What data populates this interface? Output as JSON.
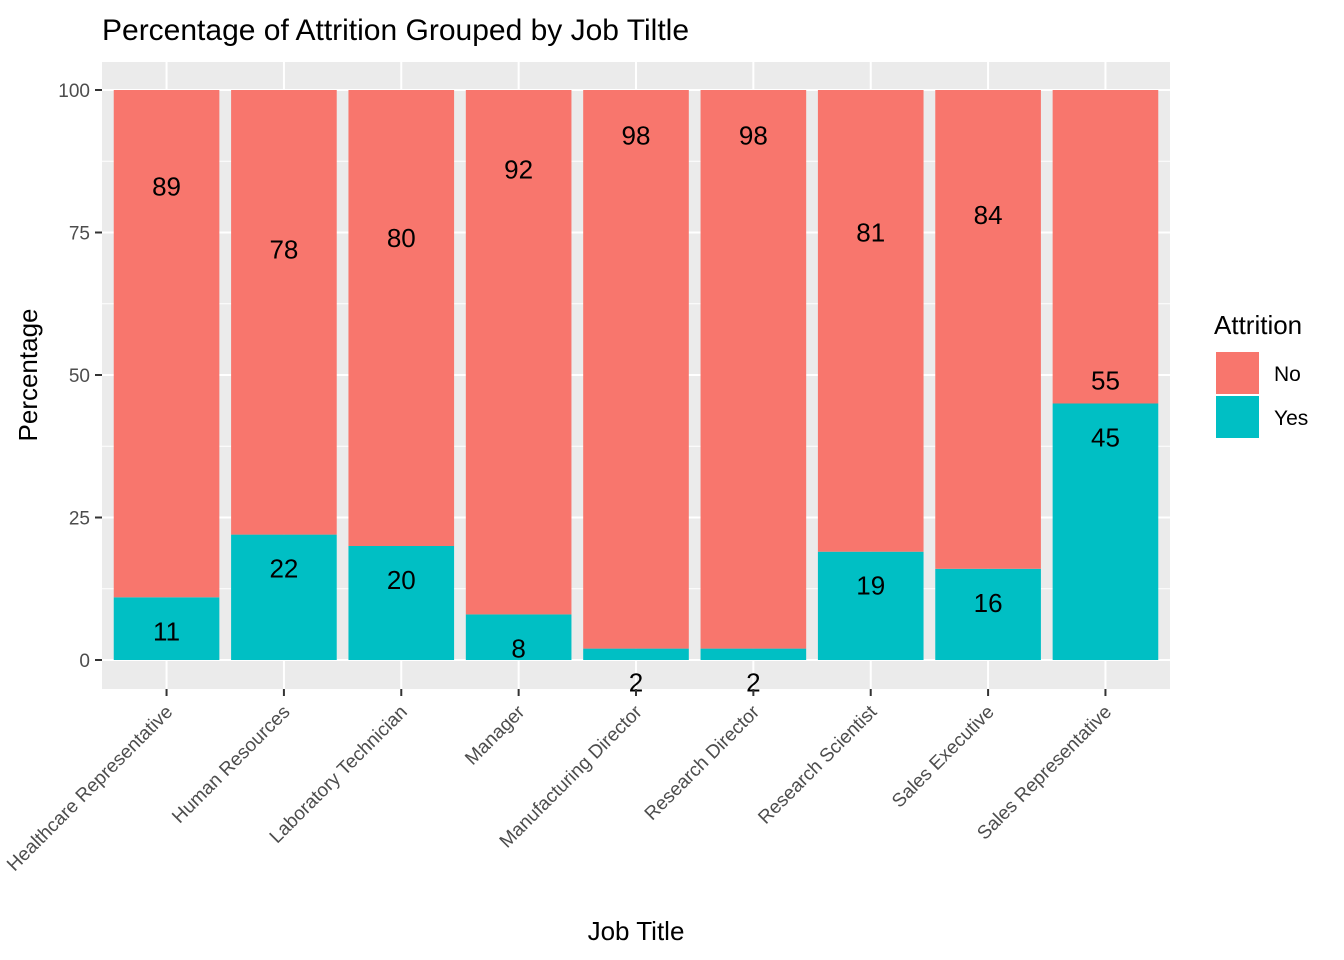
{
  "chart_data": {
    "type": "bar",
    "stacked": true,
    "title": "Percentage of Attrition Grouped by Job Tiltle",
    "xlabel": "Job Title",
    "ylabel": "Percentage",
    "ylim": [
      0,
      100
    ],
    "yticks": [
      0,
      25,
      50,
      75,
      100
    ],
    "grid": true,
    "legend": {
      "title": "Attrition",
      "position": "right"
    },
    "categories": [
      "Healthcare Representative",
      "Human Resources",
      "Laboratory Technician",
      "Manager",
      "Manufacturing Director",
      "Research Director",
      "Research Scientist",
      "Sales Executive",
      "Sales Representative"
    ],
    "series": [
      {
        "name": "No",
        "color": "#F8766D",
        "values": [
          89,
          78,
          80,
          92,
          98,
          98,
          81,
          84,
          55
        ]
      },
      {
        "name": "Yes",
        "color": "#00BFC4",
        "values": [
          11,
          22,
          20,
          8,
          2,
          2,
          19,
          16,
          45
        ]
      }
    ]
  }
}
